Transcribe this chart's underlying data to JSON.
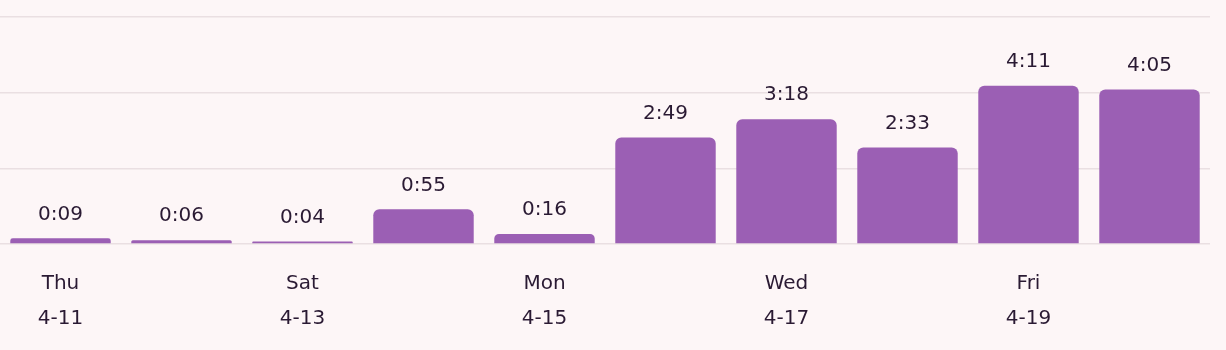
{
  "chart_data": {
    "type": "bar",
    "categories": [
      "Thu\n4-11",
      null,
      "Sat\n4-13",
      null,
      "Mon\n4-15",
      null,
      "Wed\n4-17",
      null,
      "Fri\n4-19",
      null
    ],
    "values": [
      9,
      6,
      4,
      55,
      16,
      169,
      198,
      153,
      251,
      245
    ],
    "value_labels": [
      "0:09",
      "0:06",
      "0:04",
      "0:55",
      "0:16",
      "2:49",
      "3:18",
      "2:33",
      "4:11",
      "4:05"
    ],
    "color": "#9b5fb4",
    "ylim": [
      0,
      360
    ],
    "yticks": [
      {
        "value": 0,
        "label": null
      },
      {
        "value": 120,
        "label": null
      },
      {
        "value": 240,
        "label": null
      },
      {
        "value": 360,
        "label": null
      }
    ],
    "grid": "y",
    "tick_labels": "x"
  }
}
